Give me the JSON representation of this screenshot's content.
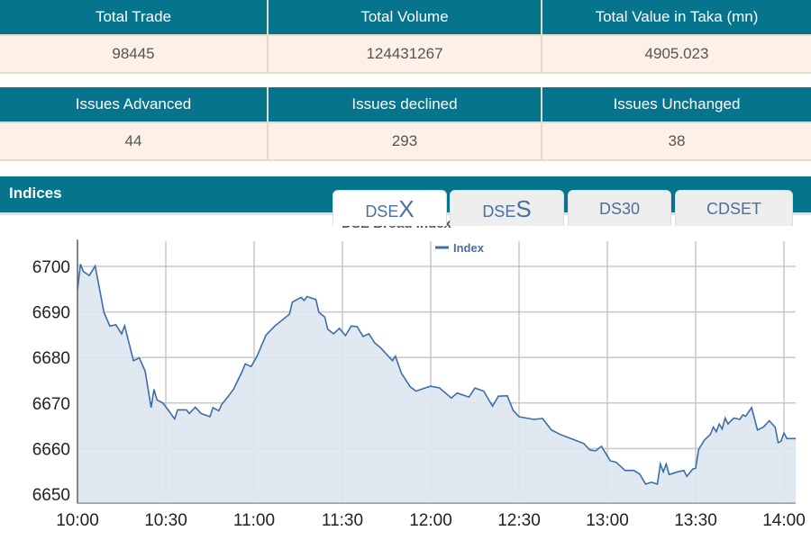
{
  "summary": {
    "headers": [
      "Total Trade",
      "Total Volume",
      "Total Value in Taka (mn)"
    ],
    "values": [
      "98445",
      "124431267",
      "4905.023"
    ]
  },
  "issues": {
    "headers": [
      "Issues Advanced",
      "Issues declined",
      "Issues Unchanged"
    ],
    "values": [
      "44",
      "293",
      "38"
    ]
  },
  "indices": {
    "title": "Indices",
    "tabs": [
      {
        "prefix": "DSE",
        "suffix": "X",
        "active": true
      },
      {
        "prefix": "DSE",
        "suffix": "S",
        "active": false
      },
      {
        "prefix": "DS30",
        "suffix": "",
        "active": false
      },
      {
        "prefix": "CDSET",
        "suffix": "",
        "active": false
      }
    ]
  },
  "colors": {
    "header": "#05748c",
    "line": "#3d6ea8",
    "fill": "#dde5ef",
    "value_row": "#fdf0e6"
  },
  "chart_data": {
    "type": "area",
    "title": "DSE Broad Index",
    "legend": {
      "entries": [
        "Index"
      ],
      "placement": "top-center"
    },
    "grid": true,
    "xlim": [
      "10:00",
      "14:04"
    ],
    "ylim": [
      6648,
      6703
    ],
    "x_ticks": [
      "10:00",
      "10:30",
      "11:00",
      "11:30",
      "12:00",
      "12:30",
      "13:00",
      "13:30",
      "14:00"
    ],
    "y_ticks": [
      6650,
      6660,
      6670,
      6680,
      6690,
      6700
    ],
    "series": [
      {
        "name": "Index",
        "x": [
          "10:00",
          "10:01",
          "10:02",
          "10:04",
          "10:06",
          "10:09",
          "10:11",
          "10:13",
          "10:15",
          "10:16",
          "10:19",
          "10:21",
          "10:23",
          "10:25",
          "10:26",
          "10:27",
          "10:29",
          "10:31",
          "10:33",
          "10:34",
          "10:37",
          "10:38",
          "10:40",
          "10:42",
          "10:45",
          "10:46",
          "10:48",
          "10:49",
          "10:51",
          "10:53",
          "10:56",
          "10:57",
          "10:59",
          "11:01",
          "11:04",
          "11:07",
          "11:12",
          "11:13",
          "11:16",
          "11:17",
          "11:18",
          "11:21",
          "11:22",
          "11:24",
          "11:25",
          "11:27",
          "11:29",
          "11:31",
          "11:33",
          "11:35",
          "11:37",
          "11:39",
          "11:41",
          "11:43",
          "11:47",
          "11:48",
          "11:50",
          "11:53",
          "11:55",
          "11:58",
          "12:00",
          "12:03",
          "12:07",
          "12:09",
          "12:13",
          "12:15",
          "12:18",
          "12:21",
          "12:23",
          "12:26",
          "12:28",
          "12:30",
          "12:35",
          "12:38",
          "12:41",
          "12:44",
          "12:48",
          "12:52",
          "12:54",
          "12:56",
          "12:58",
          "13:01",
          "13:03",
          "13:06",
          "13:09",
          "13:11",
          "13:13",
          "13:15",
          "13:17",
          "13:18",
          "13:19",
          "13:20",
          "13:21",
          "13:24",
          "13:26",
          "13:27",
          "13:29",
          "13:30",
          "13:31",
          "13:33",
          "13:35",
          "13:36",
          "13:37",
          "13:38",
          "13:39",
          "13:40",
          "13:41",
          "13:42",
          "13:43",
          "13:45",
          "13:46",
          "13:47",
          "13:49",
          "13:51",
          "13:53",
          "13:55",
          "13:57",
          "13:58",
          "13:59",
          "14:00",
          "14:01",
          "14:04"
        ],
        "values": [
          6694.8,
          6700.5,
          6698.9,
          6698.0,
          6700.1,
          6689.9,
          6686.9,
          6687.2,
          6685.2,
          6687.0,
          6679.3,
          6679.9,
          6677.0,
          6669.0,
          6673.0,
          6670.7,
          6670.0,
          6668.3,
          6666.5,
          6668.5,
          6668.5,
          6667.7,
          6669.1,
          6667.7,
          6667.0,
          6669.0,
          6668.3,
          6669.7,
          6671.3,
          6673.0,
          6677.0,
          6678.6,
          6678.0,
          6680.3,
          6684.9,
          6686.9,
          6689.5,
          6692.2,
          6693.2,
          6692.5,
          6693.4,
          6692.7,
          6689.9,
          6688.9,
          6686.2,
          6685.2,
          6686.4,
          6684.8,
          6686.9,
          6686.8,
          6684.6,
          6685.2,
          6683.2,
          6682.1,
          6679.3,
          6680.3,
          6676.6,
          6673.6,
          6672.6,
          6673.3,
          6673.7,
          6673.3,
          6671.1,
          6672.2,
          6671.3,
          6673.3,
          6672.6,
          6669.3,
          6671.5,
          6671.6,
          6668.4,
          6667.0,
          6666.4,
          6666.6,
          6664.1,
          6663.1,
          6662.1,
          6661.1,
          6659.7,
          6659.5,
          6660.5,
          6657.3,
          6657.0,
          6655.2,
          6655.2,
          6654.4,
          6652.2,
          6652.6,
          6652.2,
          6656.6,
          6654.9,
          6656.6,
          6654.3,
          6654.9,
          6655.2,
          6653.9,
          6655.5,
          6655.7,
          6659.8,
          6661.9,
          6663.1,
          6664.7,
          6663.7,
          6665.4,
          6664.3,
          6666.7,
          6665.4,
          6666.1,
          6666.7,
          6666.4,
          6667.4,
          6667.1,
          6669.0,
          6664.1,
          6664.7,
          6666.1,
          6664.7,
          6661.3,
          6661.6,
          6663.4,
          6662.2,
          6662.2
        ]
      }
    ]
  }
}
